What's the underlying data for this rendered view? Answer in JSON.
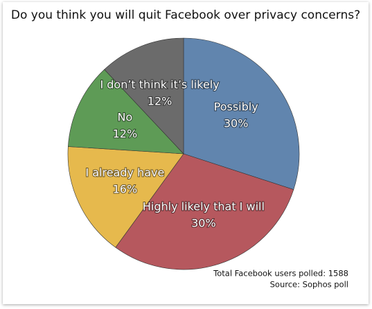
{
  "chart_data": {
    "type": "pie",
    "title": "Do you think you will quit Facebook over privacy concerns?",
    "categories": [
      "Possibly",
      "Highly likely that I will",
      "I already have",
      "No",
      "I don’t think it’s likely"
    ],
    "values": [
      30,
      30,
      16,
      12,
      12
    ],
    "value_labels": [
      "30%",
      "30%",
      "16%",
      "12%",
      "12%"
    ],
    "colors": [
      "#6185ae",
      "#b6585e",
      "#e6b94d",
      "#5e9b56",
      "#6b6b6b"
    ],
    "notes": [
      "Total Facebook users polled: 1588",
      "Source: Sophos poll"
    ]
  }
}
